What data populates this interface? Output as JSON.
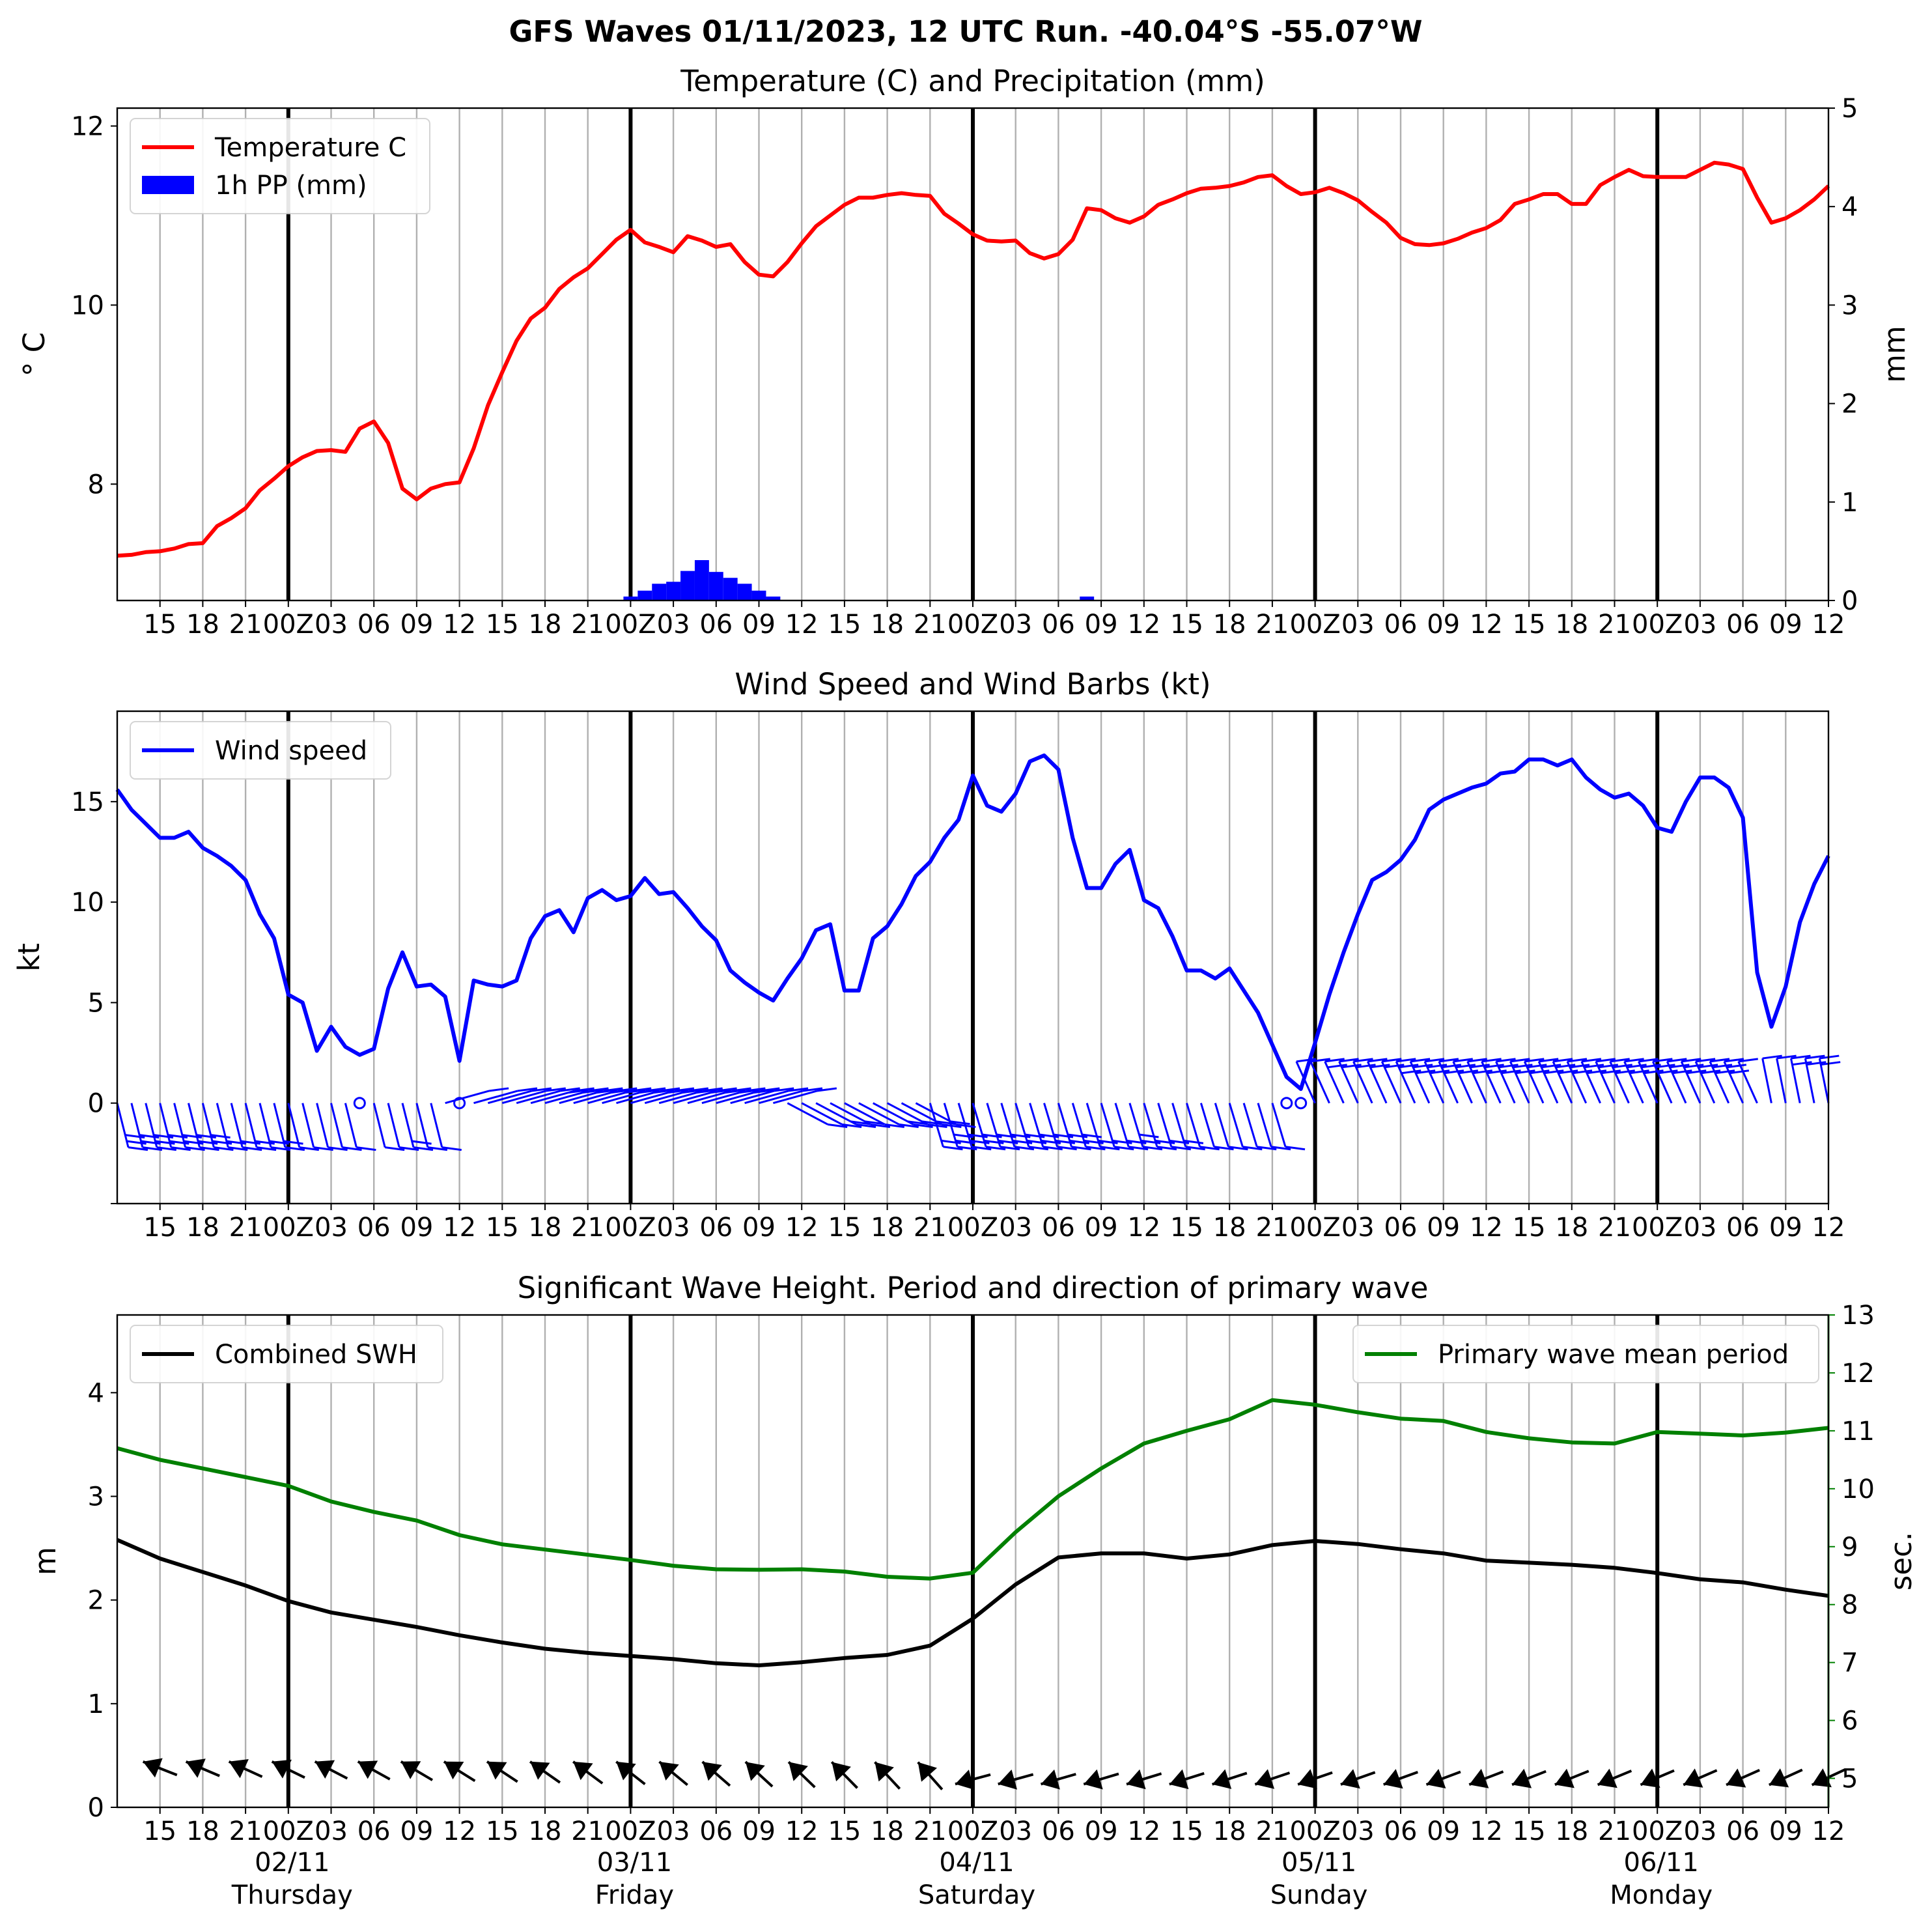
{
  "suptitle": "GFS Waves 01/11/2023, 12 UTC Run. -40.04°S -55.07°W",
  "colors": {
    "temperature": "#ff0000",
    "precip": "#0000ff",
    "wind": "#0000ff",
    "swh": "#000000",
    "period": "#008000",
    "grid": "#b0b0b0"
  },
  "xaxis": {
    "comment_units": "hours after 01/11/2023 12 UTC",
    "range": [
      0,
      120
    ],
    "tick_hours": [
      3,
      6,
      9,
      12,
      15,
      18,
      21,
      24,
      27,
      30,
      33,
      36,
      39,
      42,
      45,
      48,
      51,
      54,
      57,
      60,
      63,
      66,
      69,
      72,
      75,
      78,
      81,
      84,
      87,
      90,
      93,
      96,
      99,
      102,
      105,
      108,
      111,
      114,
      117,
      120
    ],
    "tick_labels": [
      "15",
      "18",
      "21",
      "00Z",
      "03",
      "06",
      "09",
      "12",
      "15",
      "18",
      "21",
      "00Z",
      "03",
      "06",
      "09",
      "12",
      "15",
      "18",
      "21",
      "00Z",
      "03",
      "06",
      "09",
      "12",
      "15",
      "18",
      "21",
      "00Z",
      "03",
      "06",
      "09",
      "12",
      "15",
      "18",
      "21",
      "00Z",
      "03",
      "06",
      "09",
      "12"
    ],
    "day_lines": [
      12,
      36,
      60,
      84,
      108
    ],
    "day_labels": [
      {
        "hour": 12,
        "date": "02/11",
        "weekday": "Thursday"
      },
      {
        "hour": 36,
        "date": "03/11",
        "weekday": "Friday"
      },
      {
        "hour": 60,
        "date": "04/11",
        "weekday": "Saturday"
      },
      {
        "hour": 84,
        "date": "05/11",
        "weekday": "Sunday"
      },
      {
        "hour": 108,
        "date": "06/11",
        "weekday": "Monday"
      }
    ]
  },
  "chart_data": [
    {
      "type": "line",
      "title": "Temperature (C) and Precipitation (mm)",
      "ylabel": "$^\\circ$C",
      "ylabel_display": "° C",
      "y2label": "mm",
      "ylim": [
        6.7,
        12.2
      ],
      "y2lim": [
        0,
        5
      ],
      "yticks": [
        8,
        10,
        12
      ],
      "y2ticks": [
        0,
        1,
        2,
        3,
        4,
        5
      ],
      "legend": {
        "position": "upper left",
        "entries": [
          "Temperature C",
          "1h PP (mm)"
        ]
      },
      "temperature": {
        "name": "Temperature C",
        "step_hours": 1,
        "values": [
          7.2,
          7.21,
          7.24,
          7.25,
          7.28,
          7.33,
          7.34,
          7.53,
          7.62,
          7.73,
          7.93,
          8.06,
          8.2,
          8.3,
          8.37,
          8.38,
          8.36,
          8.62,
          8.7,
          8.46,
          7.95,
          7.83,
          7.95,
          8.0,
          8.02,
          8.4,
          8.88,
          9.25,
          9.6,
          9.85,
          9.97,
          10.18,
          10.31,
          10.41,
          10.57,
          10.73,
          10.84,
          10.7,
          10.65,
          10.59,
          10.77,
          10.72,
          10.65,
          10.68,
          10.48,
          10.34,
          10.32,
          10.48,
          10.69,
          10.88,
          11.0,
          11.12,
          11.2,
          11.2,
          11.23,
          11.25,
          11.23,
          11.22,
          11.02,
          10.91,
          10.79,
          10.72,
          10.71,
          10.72,
          10.58,
          10.52,
          10.57,
          10.73,
          11.08,
          11.06,
          10.97,
          10.92,
          10.99,
          11.12,
          11.18,
          11.25,
          11.3,
          11.31,
          11.33,
          11.37,
          11.43,
          11.45,
          11.33,
          11.24,
          11.26,
          11.31,
          11.25,
          11.17,
          11.04,
          10.92,
          10.75,
          10.68,
          10.67,
          10.69,
          10.74,
          10.81,
          10.86,
          10.95,
          11.13,
          11.18,
          11.24,
          11.24,
          11.13,
          11.13,
          11.34,
          11.43,
          11.51,
          11.44,
          11.43,
          11.43,
          11.43,
          11.51,
          11.59,
          11.57,
          11.52,
          11.2,
          10.92,
          10.97,
          11.06,
          11.18,
          11.33
        ]
      },
      "precip": {
        "name": "1h PP (mm)",
        "bars": [
          {
            "hour": 36,
            "value": 0.04
          },
          {
            "hour": 37,
            "value": 0.1
          },
          {
            "hour": 38,
            "value": 0.17
          },
          {
            "hour": 39,
            "value": 0.19
          },
          {
            "hour": 40,
            "value": 0.3
          },
          {
            "hour": 41,
            "value": 0.41
          },
          {
            "hour": 42,
            "value": 0.29
          },
          {
            "hour": 43,
            "value": 0.23
          },
          {
            "hour": 44,
            "value": 0.17
          },
          {
            "hour": 45,
            "value": 0.1
          },
          {
            "hour": 46,
            "value": 0.04
          },
          {
            "hour": 68,
            "value": 0.04
          }
        ]
      }
    },
    {
      "type": "line",
      "title": "Wind Speed and Wind Barbs (kt)",
      "ylabel": "kt",
      "ylim": [
        -5,
        19.5
      ],
      "yticks": [
        0,
        5,
        10,
        15
      ],
      "legend": {
        "position": "upper left",
        "entries": [
          "Wind speed"
        ]
      },
      "wind_speed": {
        "name": "Wind speed",
        "step_hours": 1,
        "values": [
          15.6,
          14.6,
          13.9,
          13.2,
          13.2,
          13.5,
          12.7,
          12.3,
          11.8,
          11.1,
          9.4,
          8.2,
          5.4,
          5.0,
          2.6,
          3.8,
          2.8,
          2.4,
          2.7,
          5.7,
          7.5,
          5.8,
          5.9,
          5.3,
          2.1,
          6.1,
          5.9,
          5.8,
          6.1,
          8.2,
          9.3,
          9.6,
          8.5,
          10.2,
          10.6,
          10.1,
          10.3,
          11.2,
          10.4,
          10.5,
          9.7,
          8.8,
          8.1,
          6.6,
          6.0,
          5.5,
          5.1,
          6.2,
          7.2,
          8.6,
          8.9,
          5.6,
          5.6,
          8.2,
          8.8,
          9.9,
          11.3,
          12.0,
          13.2,
          14.1,
          16.3,
          14.8,
          14.5,
          15.4,
          17.0,
          17.3,
          16.6,
          13.2,
          10.7,
          10.7,
          11.9,
          12.6,
          10.1,
          9.7,
          8.3,
          6.6,
          6.6,
          6.2,
          6.7,
          5.6,
          4.5,
          2.9,
          1.3,
          0.7,
          3.0,
          5.4,
          7.5,
          9.4,
          11.1,
          11.5,
          12.1,
          13.1,
          14.6,
          15.1,
          15.4,
          15.7,
          15.9,
          16.4,
          16.5,
          17.1,
          17.1,
          16.8,
          17.1,
          16.2,
          15.6,
          15.2,
          15.4,
          14.8,
          13.7,
          13.5,
          15.0,
          16.2,
          16.2,
          15.7,
          14.2,
          6.5,
          3.8,
          5.8,
          9.0,
          10.9,
          12.3
        ]
      },
      "wind_barbs": {
        "step_hours": 1,
        "calm_hours": [
          17,
          24,
          82,
          83
        ],
        "comment": "direction_deg: meteorological direction wind comes from"
      }
    },
    {
      "type": "line",
      "title": "Significant Wave Height. Period and direction of primary wave",
      "ylabel": "m",
      "y2label": "sec.",
      "ylim": [
        0,
        4.75
      ],
      "y2lim": [
        4.5,
        13
      ],
      "yticks": [
        0,
        1,
        2,
        3,
        4
      ],
      "y2ticks": [
        5,
        6,
        7,
        8,
        9,
        10,
        11,
        12,
        13
      ],
      "legend_left": {
        "position": "upper left",
        "entries": [
          "Combined SWH"
        ]
      },
      "legend_right": {
        "position": "upper right",
        "entries": [
          "Primary wave mean period"
        ]
      },
      "step_hours": 3,
      "swh": {
        "name": "Combined SWH",
        "values": [
          2.58,
          2.4,
          2.27,
          2.14,
          1.99,
          1.88,
          1.81,
          1.74,
          1.66,
          1.59,
          1.53,
          1.49,
          1.46,
          1.43,
          1.39,
          1.37,
          1.4,
          1.44,
          1.47,
          1.56,
          1.82,
          2.15,
          2.41,
          2.45,
          2.45,
          2.4,
          2.44,
          2.53,
          2.57,
          2.54,
          2.49,
          2.45,
          2.38,
          2.36,
          2.34,
          2.31,
          2.26,
          2.2,
          2.17,
          2.1,
          2.04
        ]
      },
      "period": {
        "name": "Primary wave mean period",
        "values": [
          10.7,
          10.5,
          10.35,
          10.2,
          10.05,
          9.78,
          9.6,
          9.45,
          9.2,
          9.04,
          8.95,
          8.86,
          8.77,
          8.67,
          8.61,
          8.6,
          8.61,
          8.57,
          8.48,
          8.45,
          8.55,
          9.25,
          9.87,
          10.35,
          10.78,
          11.0,
          11.2,
          11.53,
          11.45,
          11.32,
          11.21,
          11.17,
          10.98,
          10.87,
          10.8,
          10.78,
          10.98,
          10.95,
          10.92,
          10.97,
          11.05
        ]
      },
      "wave_direction": {
        "comment": "direction wave comes from, degrees",
        "step_hours": 3
      }
    }
  ]
}
